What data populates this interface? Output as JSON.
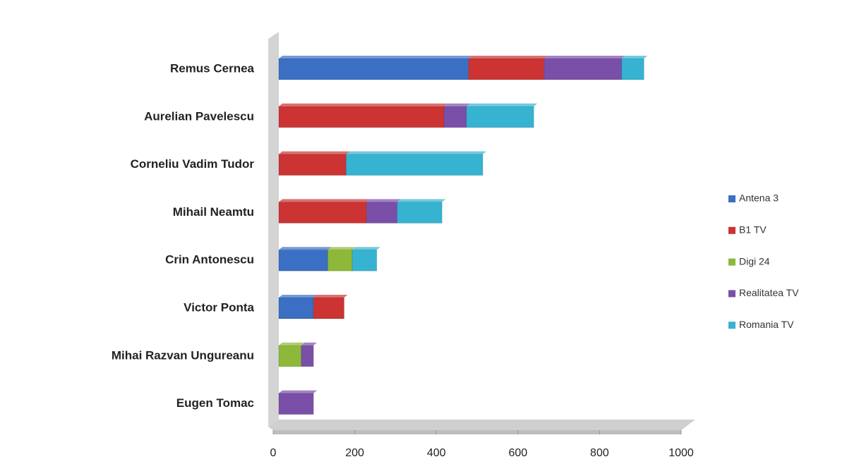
{
  "chart_data": {
    "type": "stacked-bar-horizontal",
    "categories": [
      "Remus Cernea",
      "Aurelian Pavelescu",
      "Corneliu Vadim Tudor",
      "Mihail Neamtu",
      "Crin Antonescu",
      "Victor Ponta",
      "Mihai Razvan Ungureanu",
      "Eugen Tomac"
    ],
    "series": [
      {
        "name": "Antena 3",
        "color": "#3a6fc4",
        "values": [
          465,
          null,
          null,
          null,
          120,
          85,
          null,
          null
        ]
      },
      {
        "name": "B1 TV",
        "color": "#cc3333",
        "values": [
          185,
          405,
          165,
          215,
          null,
          75,
          null,
          null
        ]
      },
      {
        "name": "Digi 24",
        "color": "#8db83a",
        "values": [
          null,
          null,
          null,
          null,
          60,
          null,
          55,
          null
        ]
      },
      {
        "name": "Realitatea TV",
        "color": "#7a4fa8",
        "values": [
          190,
          55,
          null,
          75,
          null,
          null,
          30,
          85
        ]
      },
      {
        "name": "Romania TV",
        "color": "#35b3d1",
        "values": [
          55,
          165,
          335,
          110,
          60,
          null,
          null,
          null
        ]
      }
    ],
    "xlim": [
      0,
      1000
    ],
    "xticks": [
      0,
      200,
      400,
      600,
      800,
      1000
    ],
    "legend": "right"
  }
}
